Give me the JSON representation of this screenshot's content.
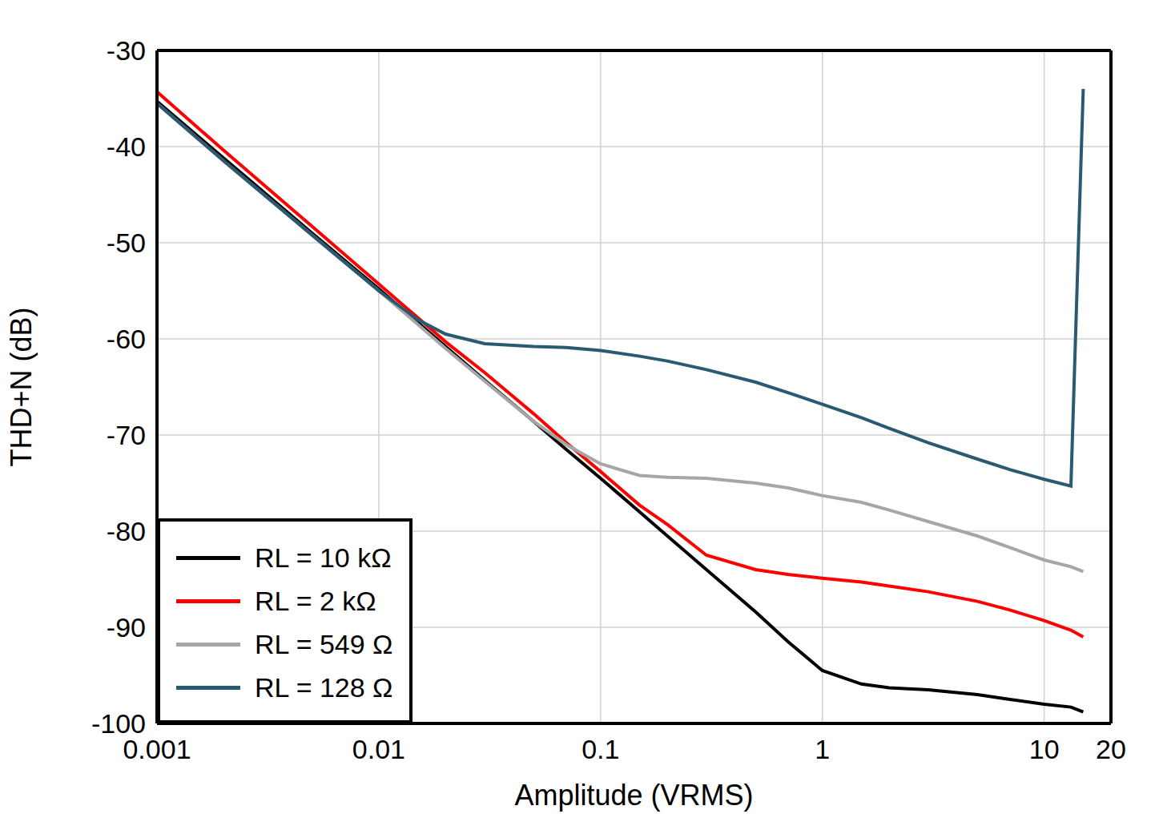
{
  "chart_data": {
    "type": "line",
    "x_label": "Amplitude (VRMS)",
    "y_label": "THD+N (dB)",
    "x": [
      0.001,
      0.002,
      0.005,
      0.01,
      0.015,
      0.02,
      0.03,
      0.05,
      0.07,
      0.1,
      0.15,
      0.2,
      0.3,
      0.5,
      0.7,
      1,
      1.5,
      2,
      3,
      5,
      7,
      10,
      13.2,
      15
    ],
    "series": [
      {
        "name": "RL = 10 kΩ",
        "color": "#000000",
        "values": [
          -35.3,
          -41.2,
          -49,
          -54.8,
          -58.3,
          -60.8,
          -64.3,
          -68.6,
          -71.5,
          -74.5,
          -78,
          -80.5,
          -84,
          -88.4,
          -91.5,
          -94.5,
          -95.9,
          -96.3,
          -96.5,
          -97,
          -97.5,
          -98,
          -98.3,
          -98.8
        ]
      },
      {
        "name": "RL = 2 kΩ",
        "color": "#ff0000",
        "values": [
          -34.3,
          -40.4,
          -48.3,
          -54.3,
          -57.8,
          -60.3,
          -63.5,
          -67.8,
          -70.8,
          -73.8,
          -77.3,
          -79.3,
          -82.5,
          -84,
          -84.5,
          -84.9,
          -85.3,
          -85.7,
          -86.3,
          -87.3,
          -88.2,
          -89.3,
          -90.3,
          -91
        ]
      },
      {
        "name": "RL = 549 Ω",
        "color": "#a6a6a6",
        "values": [
          -35.5,
          -41.5,
          -49.2,
          -55,
          -58.5,
          -61,
          -64.4,
          -68.6,
          -71,
          -73,
          -74.2,
          -74.4,
          -74.5,
          -75,
          -75.5,
          -76.3,
          -77,
          -77.8,
          -79,
          -80.5,
          -81.7,
          -83,
          -83.7,
          -84.2
        ]
      },
      {
        "name": "RL = 128 Ω",
        "color": "#2a5a72",
        "values": [
          -35.5,
          -41.5,
          -49.2,
          -55,
          -58,
          -59.5,
          -60.5,
          -60.8,
          -60.9,
          -61.2,
          -61.8,
          -62.3,
          -63.2,
          -64.5,
          -65.6,
          -66.8,
          -68.2,
          -69.3,
          -70.8,
          -72.5,
          -73.6,
          -74.6,
          -75.3,
          -34
        ]
      }
    ],
    "xlim": [
      0.001,
      20
    ],
    "xticks": [
      0.001,
      0.01,
      0.1,
      1,
      10,
      20
    ],
    "ylim": [
      -100,
      -30
    ],
    "yticks": [
      -100,
      -90,
      -80,
      -70,
      -60,
      -50,
      -40,
      -30
    ],
    "log": "x",
    "grid": true,
    "legend": "lower left"
  }
}
